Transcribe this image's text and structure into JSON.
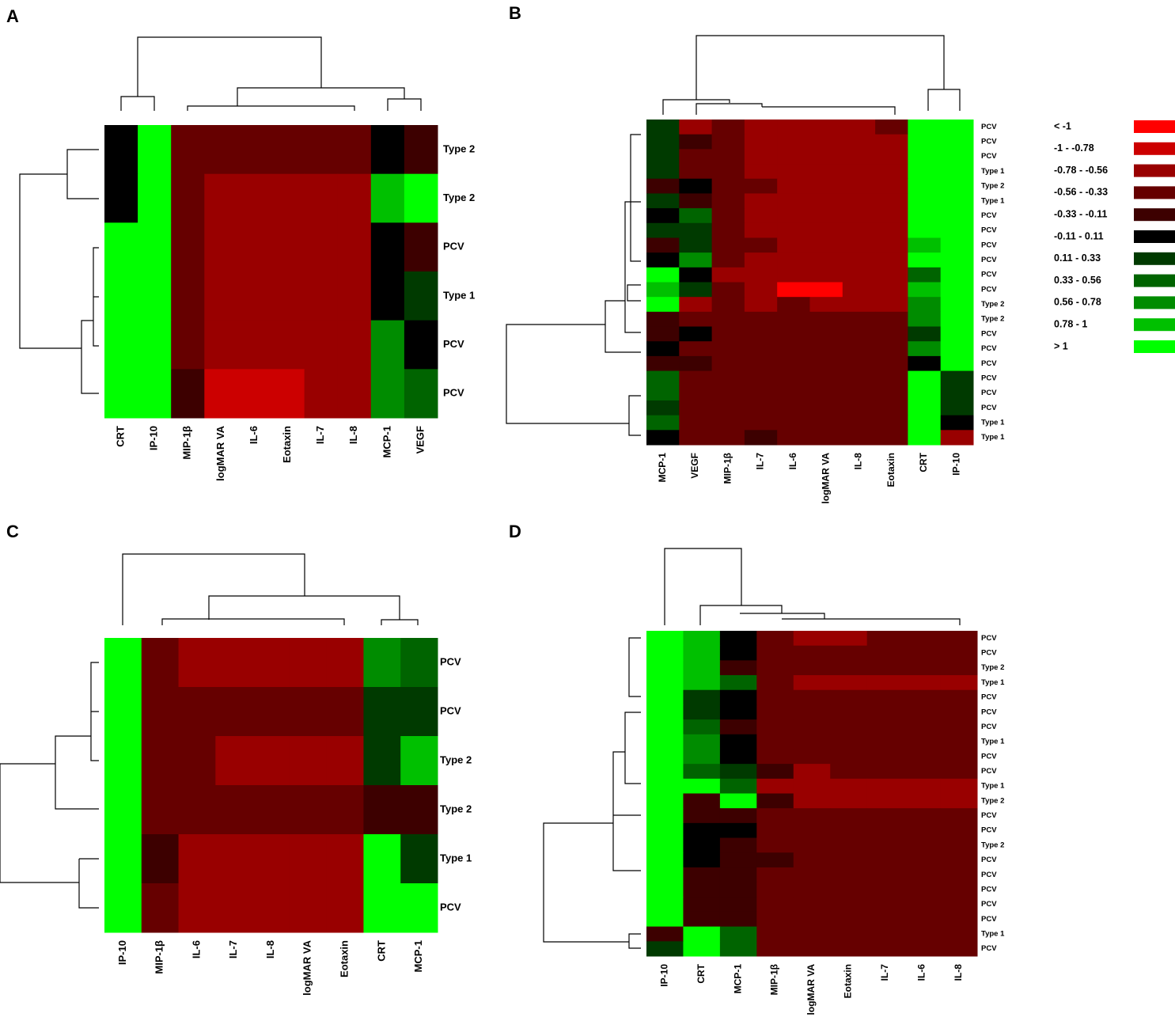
{
  "chart_data": [
    {
      "type": "heatmap",
      "panel": "A",
      "columns": [
        "CRT",
        "IP-10",
        "MIP-1β",
        "logMAR VA",
        "IL-6",
        "Eotaxin",
        "IL-7",
        "IL-8",
        "MCP-1",
        "VEGF"
      ],
      "rows": [
        "Type 2",
        "Type 2",
        "PCV",
        "Type 1",
        "PCV",
        "PCV"
      ],
      "values": [
        [
          0,
          1.1,
          -0.445,
          -0.445,
          -0.445,
          -0.445,
          -0.445,
          -0.445,
          0,
          -0.22
        ],
        [
          0,
          1.1,
          -0.445,
          -0.67,
          -0.67,
          -0.67,
          -0.67,
          -0.67,
          0.89,
          1.1
        ],
        [
          1.1,
          1.1,
          -0.445,
          -0.67,
          -0.67,
          -0.67,
          -0.67,
          -0.67,
          0,
          -0.22
        ],
        [
          1.1,
          1.1,
          -0.445,
          -0.67,
          -0.67,
          -0.67,
          -0.67,
          -0.67,
          0,
          0.22
        ],
        [
          1.1,
          1.1,
          -0.445,
          -0.67,
          -0.67,
          -0.67,
          -0.67,
          -0.67,
          0.67,
          0
        ],
        [
          1.1,
          1.1,
          -0.22,
          -0.89,
          -0.89,
          -0.89,
          -0.67,
          -0.67,
          0.67,
          0.445
        ]
      ]
    },
    {
      "type": "heatmap",
      "panel": "B",
      "columns": [
        "MCP-1",
        "VEGF",
        "MIP-1β",
        "IL-7",
        "IL-6",
        "logMAR VA",
        "IL-8",
        "Eotaxin",
        "CRT",
        "IP-10"
      ],
      "rows": [
        "PCV",
        "PCV",
        "PCV",
        "Type 1",
        "Type 2",
        "Type 1",
        "PCV",
        "PCV",
        "PCV",
        "PCV",
        "PCV",
        "PCV",
        "Type 2",
        "Type 2",
        "PCV",
        "PCV",
        "PCV",
        "PCV",
        "PCV",
        "PCV",
        "Type 1",
        "Type 1"
      ],
      "values": [
        [
          0.22,
          -0.67,
          -0.445,
          -0.67,
          -0.67,
          -0.67,
          -0.67,
          -0.445,
          1.1,
          1.1
        ],
        [
          0.22,
          -0.22,
          -0.445,
          -0.67,
          -0.67,
          -0.67,
          -0.67,
          -0.67,
          1.1,
          1.1
        ],
        [
          0.22,
          -0.445,
          -0.445,
          -0.67,
          -0.67,
          -0.67,
          -0.67,
          -0.67,
          1.1,
          1.1
        ],
        [
          0.22,
          -0.445,
          -0.445,
          -0.67,
          -0.67,
          -0.67,
          -0.67,
          -0.67,
          1.1,
          1.1
        ],
        [
          -0.22,
          0,
          -0.445,
          -0.445,
          -0.67,
          -0.67,
          -0.67,
          -0.67,
          1.1,
          1.1
        ],
        [
          0.22,
          -0.22,
          -0.445,
          -0.67,
          -0.67,
          -0.67,
          -0.67,
          -0.67,
          1.1,
          1.1
        ],
        [
          0,
          0.445,
          -0.445,
          -0.67,
          -0.67,
          -0.67,
          -0.67,
          -0.67,
          1.1,
          1.1
        ],
        [
          0.22,
          0.22,
          -0.445,
          -0.67,
          -0.67,
          -0.67,
          -0.67,
          -0.67,
          1.1,
          1.1
        ],
        [
          -0.22,
          0.22,
          -0.445,
          -0.445,
          -0.67,
          -0.67,
          -0.67,
          -0.67,
          0.89,
          1.1
        ],
        [
          0,
          0.67,
          -0.445,
          -0.67,
          -0.67,
          -0.67,
          -0.67,
          -0.67,
          1.1,
          1.1
        ],
        [
          1.1,
          0,
          -0.67,
          -0.67,
          -0.67,
          -0.67,
          -0.67,
          -0.67,
          0.445,
          1.1
        ],
        [
          0.89,
          0.22,
          -0.445,
          -0.67,
          -1.1,
          -1.1,
          -0.67,
          -0.67,
          0.89,
          1.1
        ],
        [
          1.1,
          -0.67,
          -0.445,
          -0.67,
          -0.445,
          -0.67,
          -0.67,
          -0.67,
          0.67,
          1.1
        ],
        [
          -0.22,
          -0.445,
          -0.445,
          -0.445,
          -0.445,
          -0.445,
          -0.445,
          -0.445,
          0.67,
          1.1
        ],
        [
          -0.22,
          0,
          -0.445,
          -0.445,
          -0.445,
          -0.445,
          -0.445,
          -0.445,
          0.22,
          1.1
        ],
        [
          0,
          -0.445,
          -0.445,
          -0.445,
          -0.445,
          -0.445,
          -0.445,
          -0.445,
          0.67,
          1.1
        ],
        [
          -0.22,
          -0.22,
          -0.445,
          -0.445,
          -0.445,
          -0.445,
          -0.445,
          -0.445,
          0,
          1.1
        ],
        [
          0.445,
          -0.445,
          -0.445,
          -0.445,
          -0.445,
          -0.445,
          -0.445,
          -0.445,
          1.1,
          0.22
        ],
        [
          0.445,
          -0.445,
          -0.445,
          -0.445,
          -0.445,
          -0.445,
          -0.445,
          -0.445,
          1.1,
          0.22
        ],
        [
          0.22,
          -0.445,
          -0.445,
          -0.445,
          -0.445,
          -0.445,
          -0.445,
          -0.445,
          1.1,
          0.22
        ],
        [
          0.445,
          -0.445,
          -0.445,
          -0.445,
          -0.445,
          -0.445,
          -0.445,
          -0.445,
          1.1,
          0
        ],
        [
          0,
          -0.445,
          -0.445,
          -0.22,
          -0.445,
          -0.445,
          -0.445,
          -0.445,
          1.1,
          -0.67
        ]
      ]
    },
    {
      "type": "heatmap",
      "panel": "C",
      "columns": [
        "IP-10",
        "MIP-1β",
        "IL-6",
        "IL-7",
        "IL-8",
        "logMAR VA",
        "Eotaxin",
        "CRT",
        "MCP-1"
      ],
      "rows": [
        "PCV",
        "PCV",
        "Type 2",
        "Type 2",
        "Type 1",
        "PCV"
      ],
      "values": [
        [
          1.1,
          -0.445,
          -0.67,
          -0.67,
          -0.67,
          -0.67,
          -0.67,
          0.67,
          0.445
        ],
        [
          1.1,
          -0.445,
          -0.445,
          -0.445,
          -0.445,
          -0.445,
          -0.445,
          0.22,
          0.22
        ],
        [
          1.1,
          -0.445,
          -0.445,
          -0.67,
          -0.67,
          -0.67,
          -0.67,
          0.22,
          0.89
        ],
        [
          1.1,
          -0.445,
          -0.445,
          -0.445,
          -0.445,
          -0.445,
          -0.445,
          -0.22,
          -0.22
        ],
        [
          1.1,
          -0.22,
          -0.67,
          -0.67,
          -0.67,
          -0.67,
          -0.67,
          1.1,
          0.22
        ],
        [
          1.1,
          -0.445,
          -0.67,
          -0.67,
          -0.67,
          -0.67,
          -0.67,
          1.1,
          1.1
        ]
      ]
    },
    {
      "type": "heatmap",
      "panel": "D",
      "columns": [
        "IP-10",
        "CRT",
        "MCP-1",
        "MIP-1β",
        "logMAR VA",
        "Eotaxin",
        "IL-7",
        "IL-6",
        "IL-8"
      ],
      "rows": [
        "PCV",
        "PCV",
        "Type 2",
        "Type 1",
        "PCV",
        "PCV",
        "PCV",
        "Type 1",
        "PCV",
        "PCV",
        "Type 1",
        "Type 2",
        "PCV",
        "PCV",
        "Type 2",
        "PCV",
        "PCV",
        "PCV",
        "PCV",
        "PCV",
        "Type 1",
        "PCV"
      ],
      "values": [
        [
          1.1,
          0.89,
          0,
          -0.445,
          -0.67,
          -0.67,
          -0.445,
          -0.445,
          -0.445
        ],
        [
          1.1,
          0.89,
          0,
          -0.445,
          -0.445,
          -0.445,
          -0.445,
          -0.445,
          -0.445
        ],
        [
          1.1,
          0.89,
          -0.22,
          -0.445,
          -0.445,
          -0.445,
          -0.445,
          -0.445,
          -0.445
        ],
        [
          1.1,
          0.89,
          0.445,
          -0.445,
          -0.67,
          -0.67,
          -0.67,
          -0.67,
          -0.67
        ],
        [
          1.1,
          0.22,
          0,
          -0.445,
          -0.445,
          -0.445,
          -0.445,
          -0.445,
          -0.445
        ],
        [
          1.1,
          0.22,
          0,
          -0.445,
          -0.445,
          -0.445,
          -0.445,
          -0.445,
          -0.445
        ],
        [
          1.1,
          0.445,
          -0.22,
          -0.445,
          -0.445,
          -0.445,
          -0.445,
          -0.445,
          -0.445
        ],
        [
          1.1,
          0.67,
          0,
          -0.445,
          -0.445,
          -0.445,
          -0.445,
          -0.445,
          -0.445
        ],
        [
          1.1,
          0.67,
          0,
          -0.445,
          -0.445,
          -0.445,
          -0.445,
          -0.445,
          -0.445
        ],
        [
          1.1,
          0.445,
          0.22,
          -0.22,
          -0.67,
          -0.445,
          -0.445,
          -0.445,
          -0.445
        ],
        [
          1.1,
          1.1,
          0.445,
          -0.67,
          -0.67,
          -0.67,
          -0.67,
          -0.67,
          -0.67
        ],
        [
          1.1,
          -0.22,
          1.1,
          -0.22,
          -0.67,
          -0.67,
          -0.67,
          -0.67,
          -0.67
        ],
        [
          1.1,
          -0.22,
          -0.22,
          -0.445,
          -0.445,
          -0.445,
          -0.445,
          -0.445,
          -0.445
        ],
        [
          1.1,
          0,
          0,
          -0.445,
          -0.445,
          -0.445,
          -0.445,
          -0.445,
          -0.445
        ],
        [
          1.1,
          0,
          -0.22,
          -0.445,
          -0.445,
          -0.445,
          -0.445,
          -0.445,
          -0.445
        ],
        [
          1.1,
          0,
          -0.22,
          -0.22,
          -0.445,
          -0.445,
          -0.445,
          -0.445,
          -0.445
        ],
        [
          1.1,
          -0.22,
          -0.22,
          -0.445,
          -0.445,
          -0.445,
          -0.445,
          -0.445,
          -0.445
        ],
        [
          1.1,
          -0.22,
          -0.22,
          -0.445,
          -0.445,
          -0.445,
          -0.445,
          -0.445,
          -0.445
        ],
        [
          1.1,
          -0.22,
          -0.22,
          -0.445,
          -0.445,
          -0.445,
          -0.445,
          -0.445,
          -0.445
        ],
        [
          1.1,
          -0.22,
          -0.22,
          -0.445,
          -0.445,
          -0.445,
          -0.445,
          -0.445,
          -0.445
        ],
        [
          -0.22,
          1.1,
          0.445,
          -0.445,
          -0.445,
          -0.445,
          -0.445,
          -0.445,
          -0.445
        ],
        [
          0.22,
          1.1,
          0.445,
          -0.445,
          -0.445,
          -0.445,
          -0.445,
          -0.445,
          -0.445
        ]
      ]
    }
  ],
  "legend": {
    "breaks": [
      -1,
      -0.78,
      -0.56,
      -0.33,
      -0.11,
      0.11,
      0.33,
      0.56,
      0.78,
      1
    ],
    "items": [
      {
        "label": "< -1",
        "color": "#ff0000"
      },
      {
        "label": "-1 - -0.78",
        "color": "#cc0000"
      },
      {
        "label": "-0.78 - -0.56",
        "color": "#990000"
      },
      {
        "label": "-0.56 - -0.33",
        "color": "#660000"
      },
      {
        "label": "-0.33 - -0.11",
        "color": "#3d0000"
      },
      {
        "label": "-0.11 - 0.11",
        "color": "#000000"
      },
      {
        "label": "0.11 - 0.33",
        "color": "#003a00"
      },
      {
        "label": "0.33 - 0.56",
        "color": "#006400"
      },
      {
        "label": "0.56 - 0.78",
        "color": "#008c00"
      },
      {
        "label": "0.78 - 1",
        "color": "#00c000"
      },
      {
        "label": "> 1",
        "color": "#00ff00"
      }
    ]
  }
}
